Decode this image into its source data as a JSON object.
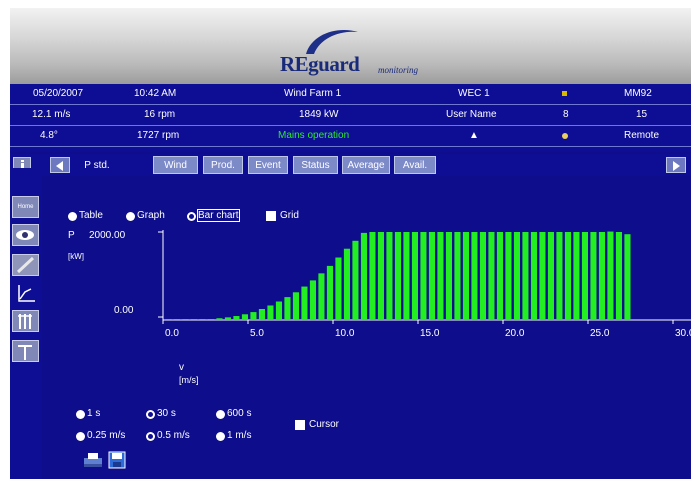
{
  "header": {
    "logo_brand": "REguard",
    "logo_sub": "monitoring"
  },
  "info_rows": [
    {
      "date": "05/20/2007",
      "time": "10:42 AM",
      "farm": "Wind Farm 1",
      "wec": "WEC 1",
      "id": "MM92"
    },
    {
      "wind": "12.1 m/s",
      "rotor": "16 rpm",
      "power": "1849 kW",
      "user": "User Name",
      "count": "8",
      "num": "15"
    },
    {
      "angle": "4.8°",
      "gen": "1727 rpm",
      "status": "Mains operation",
      "mode": "Remote"
    }
  ],
  "tabs": [
    "P std.",
    "Wind",
    "Prod.",
    "Event",
    "Status",
    "Average",
    "Avail."
  ],
  "active_tab": "P std.",
  "sidebar": {
    "home_label": "Home"
  },
  "view_options": {
    "table": "Table",
    "graph": "Graph",
    "bar_chart": "Bar chart",
    "grid": "Grid",
    "selected": "Bar chart"
  },
  "interval_options": [
    "1 s",
    "30 s",
    "600 s"
  ],
  "interval_selected": "30 s",
  "bin_options": [
    "0.25 m/s",
    "0.5 m/s",
    "1 m/s"
  ],
  "bin_selected": "0.5 m/s",
  "cursor_label": "Cursor",
  "colors": {
    "background": "#0e0e8c",
    "bars": "#22ee22",
    "text": "#ffffff",
    "status_ok": "#2ee82e"
  },
  "icons": [
    "info-icon",
    "prev-arrow-icon",
    "next-arrow-icon",
    "home-icon",
    "eye-icon",
    "pencil-icon",
    "chart-icon",
    "tower-icon",
    "turbine-icon",
    "print-icon",
    "save-icon"
  ],
  "chart_data": {
    "type": "bar",
    "ylabel": "P",
    "yunit": "[kW]",
    "xlabel": "v",
    "xunit": "[m/s]",
    "y_ticks": [
      "2000.00",
      "0.00"
    ],
    "x_ticks": [
      "0.0",
      "5.0",
      "10.0",
      "15.0",
      "20.0",
      "25.0",
      "30.0"
    ],
    "xlim": [
      0,
      30
    ],
    "ylim": [
      0,
      2000
    ],
    "x": [
      0.5,
      1.0,
      1.5,
      2.0,
      2.5,
      3.0,
      3.5,
      4.0,
      4.5,
      5.0,
      5.5,
      6.0,
      6.5,
      7.0,
      7.5,
      8.0,
      8.5,
      9.0,
      9.5,
      10.0,
      10.5,
      11.0,
      11.5,
      12.0,
      12.5,
      13.0,
      13.5,
      14.0,
      14.5,
      15.0,
      15.5,
      16.0,
      16.5,
      17.0,
      17.5,
      18.0,
      18.5,
      19.0,
      19.5,
      20.0,
      20.5,
      21.0,
      21.5,
      22.0,
      22.5,
      23.0,
      23.5,
      24.0,
      24.5,
      25.0,
      25.5,
      26.0,
      26.5,
      27.0,
      27.5
    ],
    "values": [
      0,
      0,
      0,
      0,
      10,
      20,
      40,
      60,
      90,
      130,
      180,
      250,
      330,
      420,
      520,
      630,
      760,
      900,
      1060,
      1230,
      1420,
      1620,
      1800,
      1980,
      2000,
      2000,
      2000,
      2000,
      2000,
      2000,
      2000,
      2000,
      2000,
      2000,
      2000,
      2000,
      2000,
      2000,
      2000,
      2000,
      2000,
      2000,
      2000,
      2000,
      2000,
      2000,
      2000,
      2000,
      2000,
      2000,
      2000,
      2000,
      2010,
      2000,
      1950
    ],
    "grid": false
  }
}
